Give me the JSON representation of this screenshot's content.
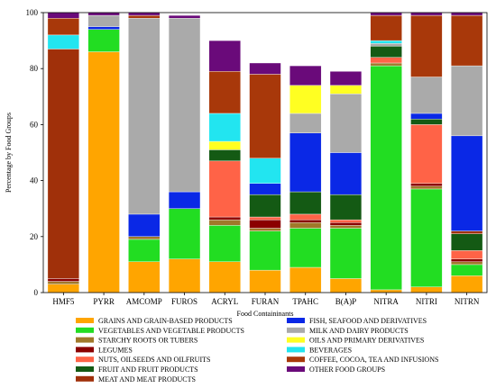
{
  "chart_data": {
    "type": "bar",
    "stacked": true,
    "title": "",
    "xlabel": "Food Containinants",
    "ylabel": "Percentage by Food Groups",
    "ylim": [
      0,
      100
    ],
    "yticks": [
      0,
      20,
      40,
      60,
      80,
      100
    ],
    "grid": false,
    "legend_position": "bottom",
    "categories": [
      "HMF5",
      "PYRR",
      "AMCOMP",
      "FUROS",
      "ACRYL",
      "FURAN",
      "TPAHC",
      "B(A)P",
      "NITRA",
      "NITRI",
      "NITRN"
    ],
    "series": [
      {
        "name": "GRAINS AND GRAIN-BASED PRODUCTS",
        "color": "#FFA500",
        "values": [
          3,
          86,
          11,
          12,
          11,
          8,
          9,
          5,
          1,
          2,
          6
        ]
      },
      {
        "name": "VEGETABLES AND VEGETABLE PRODUCTS",
        "color": "#22DD22",
        "values": [
          0,
          8,
          8,
          18,
          13,
          14,
          14,
          18,
          80,
          35,
          4
        ]
      },
      {
        "name": "STARCHY ROOTS OR TUBERS",
        "color": "#A0782A",
        "values": [
          1,
          0,
          1,
          0,
          2,
          1,
          2,
          1,
          1,
          1,
          1
        ]
      },
      {
        "name": "LEGUMES",
        "color": "#8B0000",
        "values": [
          1,
          0,
          0,
          0,
          1,
          3,
          1,
          1,
          0,
          1,
          1
        ]
      },
      {
        "name": "NUTS, OILSEEDS AND OILFRUITS",
        "color": "#FF6347",
        "values": [
          0,
          0,
          0,
          0,
          20,
          1,
          2,
          1,
          2,
          21,
          3
        ]
      },
      {
        "name": "FRUIT AND FRUIT PRODUCTS",
        "color": "#145A14",
        "values": [
          0,
          0,
          0,
          0,
          4,
          8,
          8,
          9,
          4,
          2,
          6
        ]
      },
      {
        "name": "MEAT AND MEAT PRODUCTS",
        "color": "#A0300A",
        "values": [
          82,
          0,
          0,
          0,
          0,
          0,
          0,
          0,
          0,
          0,
          1
        ]
      },
      {
        "name": "FISH, SEAFOOD AND DERIVATIVES",
        "color": "#0A28E6",
        "values": [
          0,
          1,
          8,
          6,
          0,
          4,
          21,
          15,
          0,
          2,
          34
        ]
      },
      {
        "name": "MILK AND DAIRY PRODUCTS",
        "color": "#AAAAAA",
        "values": [
          0,
          4,
          70,
          62,
          0,
          0,
          7,
          21,
          1,
          13,
          25
        ]
      },
      {
        "name": "OILS AND PRIMARY DERIVATIVES",
        "color": "#FFFF22",
        "values": [
          0,
          0,
          0,
          0,
          3,
          0,
          10,
          3,
          0,
          0,
          0
        ]
      },
      {
        "name": "BEVERAGES",
        "color": "#22E5F0",
        "values": [
          5,
          0,
          0,
          0,
          10,
          9,
          0,
          0,
          1,
          0,
          0
        ]
      },
      {
        "name": "COFFEE, COCOA, TEA AND INFUSIONS",
        "color": "#A8380A",
        "values": [
          6,
          0,
          1,
          0,
          15,
          30,
          0,
          0,
          9,
          22,
          18
        ]
      },
      {
        "name": "OTHER FOOD GROUPS",
        "color": "#6A0A7A",
        "values": [
          2,
          1,
          1,
          1,
          11,
          4,
          7,
          5,
          1,
          1,
          1
        ]
      }
    ]
  }
}
